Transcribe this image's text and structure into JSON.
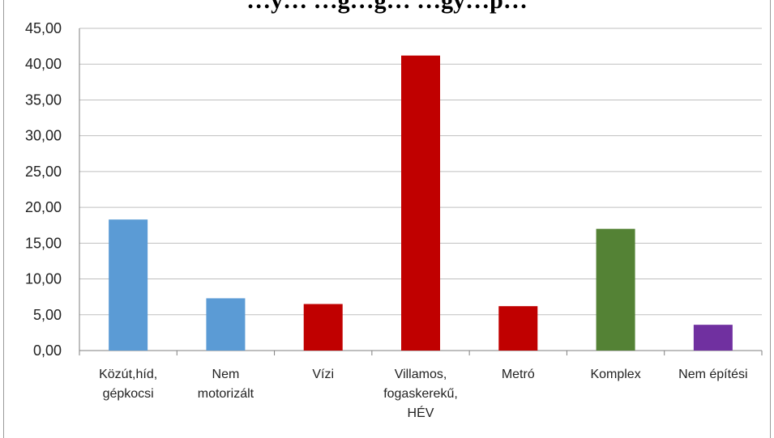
{
  "chart_data": {
    "type": "bar",
    "title": "…y… …g…g… …gy…p…",
    "categories": [
      [
        "Közút,híd,",
        "gépkocsi"
      ],
      [
        "Nem",
        "motorizált"
      ],
      [
        "Vízi"
      ],
      [
        "Villamos,",
        "fogaskerekű,",
        "HÉV"
      ],
      [
        "Metró"
      ],
      [
        "Komplex"
      ],
      [
        "Nem építési"
      ]
    ],
    "values": [
      18.3,
      7.3,
      6.5,
      41.2,
      6.2,
      17.0,
      3.6
    ],
    "colors": [
      "#5b9bd5",
      "#5b9bd5",
      "#c00000",
      "#c00000",
      "#c00000",
      "#548235",
      "#7030a0"
    ],
    "ylim": [
      0,
      45
    ],
    "ytick_step": 5,
    "ytick_labels": [
      "0,00",
      "5,00",
      "10,00",
      "15,00",
      "20,00",
      "25,00",
      "30,00",
      "35,00",
      "40,00",
      "45,00"
    ],
    "grid": true,
    "legend": "none",
    "xlabel": "",
    "ylabel": ""
  }
}
